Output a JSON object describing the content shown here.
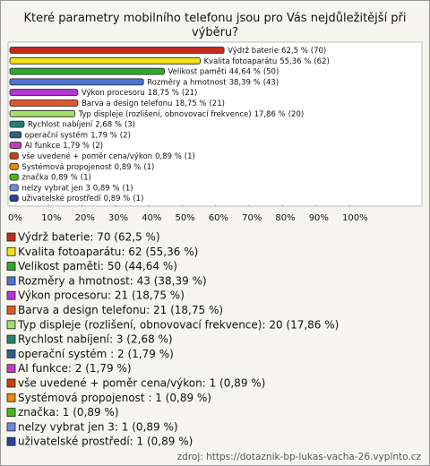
{
  "chart_data": {
    "type": "bar",
    "orientation": "horizontal",
    "title": "Které parametry mobilního telefonu jsou pro Vás nejdůležitější při výběru?",
    "categories": [
      "Výdrž baterie",
      "Kvalita fotoaparátu",
      "Velikost paměti",
      "Rozměry a hmotnost",
      "Výkon procesoru",
      "Barva a design telefonu",
      "Typ displeje (rozlišení, obnovovací frekvence)",
      "Rychlost nabíjení",
      "operační systém",
      "AI funkce",
      "vše uvedené + poměr cena/výkon",
      "Systémová propojenost",
      "značka",
      "nelzy vybrat jen 3",
      "uživatelské prostředí"
    ],
    "values": [
      62.5,
      55.36,
      44.64,
      38.39,
      18.75,
      18.75,
      17.86,
      2.68,
      1.79,
      1.79,
      0.89,
      0.89,
      0.89,
      0.89,
      0.89
    ],
    "value_labels": [
      "62,5 %",
      "55,36 %",
      "44,64 %",
      "38,39 %",
      "18,75 %",
      "18,75 %",
      "17,86 %",
      "2,68 %",
      "1,79 %",
      "1,79 %",
      "0,89 %",
      "0,89 %",
      "0,89 %",
      "0,89 %",
      "0,89 %"
    ],
    "counts": [
      70,
      62,
      50,
      43,
      21,
      21,
      20,
      3,
      2,
      2,
      1,
      1,
      1,
      1,
      1
    ],
    "count_labels": [
      "(70)",
      "(62)",
      "(50)",
      "(43)",
      "(21)",
      "(21)",
      "(20)",
      "(3)",
      "(2)",
      "(2)",
      "(1)",
      "(1)",
      "(1)",
      "(1)",
      "(1)"
    ],
    "colors": [
      "#c62a1e",
      "#f2de1a",
      "#2fa82f",
      "#4f73d4",
      "#b436d4",
      "#e0552a",
      "#a4e06a",
      "#25806e",
      "#2f5f86",
      "#c03cc0",
      "#c8400a",
      "#e88a10",
      "#48b818",
      "#6a88e0",
      "#2f3f9a"
    ],
    "legend": [
      "Výdrž baterie: 70 (62,5 %)",
      "Kvalita fotoaparátu: 62 (55,36 %)",
      "Velikost paměti: 50 (44,64 %)",
      "Rozměry a hmotnost: 43 (38,39 %)",
      "Výkon procesoru: 21 (18,75 %)",
      "Barva a design telefonu: 21 (18,75 %)",
      "Typ displeje (rozlišení, obnovovací frekvence): 20 (17,86 %)",
      "Rychlost nabíjení: 3 (2,68 %)",
      "operační systém : 2 (1,79 %)",
      "AI funkce: 2 (1,79 %)",
      "vše uvedené + poměr cena/výkon: 1 (0,89 %)",
      "Systémová propojenost : 1 (0,89 %)",
      "značka: 1 (0,89 %)",
      "nelzy vybrat jen 3: 1 (0,89 %)",
      "uživatelské prostředí: 1 (0,89 %)"
    ],
    "xlim": [
      0,
      100
    ],
    "xticks": [
      {
        "value": 0,
        "label": "0%"
      },
      {
        "value": 10,
        "label": "10%"
      },
      {
        "value": 20,
        "label": "20%"
      },
      {
        "value": 30,
        "label": "30%"
      },
      {
        "value": 40,
        "label": "40%"
      },
      {
        "value": 50,
        "label": "50%"
      },
      {
        "value": 60,
        "label": "60%"
      },
      {
        "value": 70,
        "label": "70%"
      },
      {
        "value": 80,
        "label": "80%"
      },
      {
        "value": 90,
        "label": "90%"
      },
      {
        "value": 100,
        "label": "100%"
      }
    ],
    "source": "zdroj: https://dotaznik-bp-lukas-vacha-26.vyplnto.cz"
  }
}
